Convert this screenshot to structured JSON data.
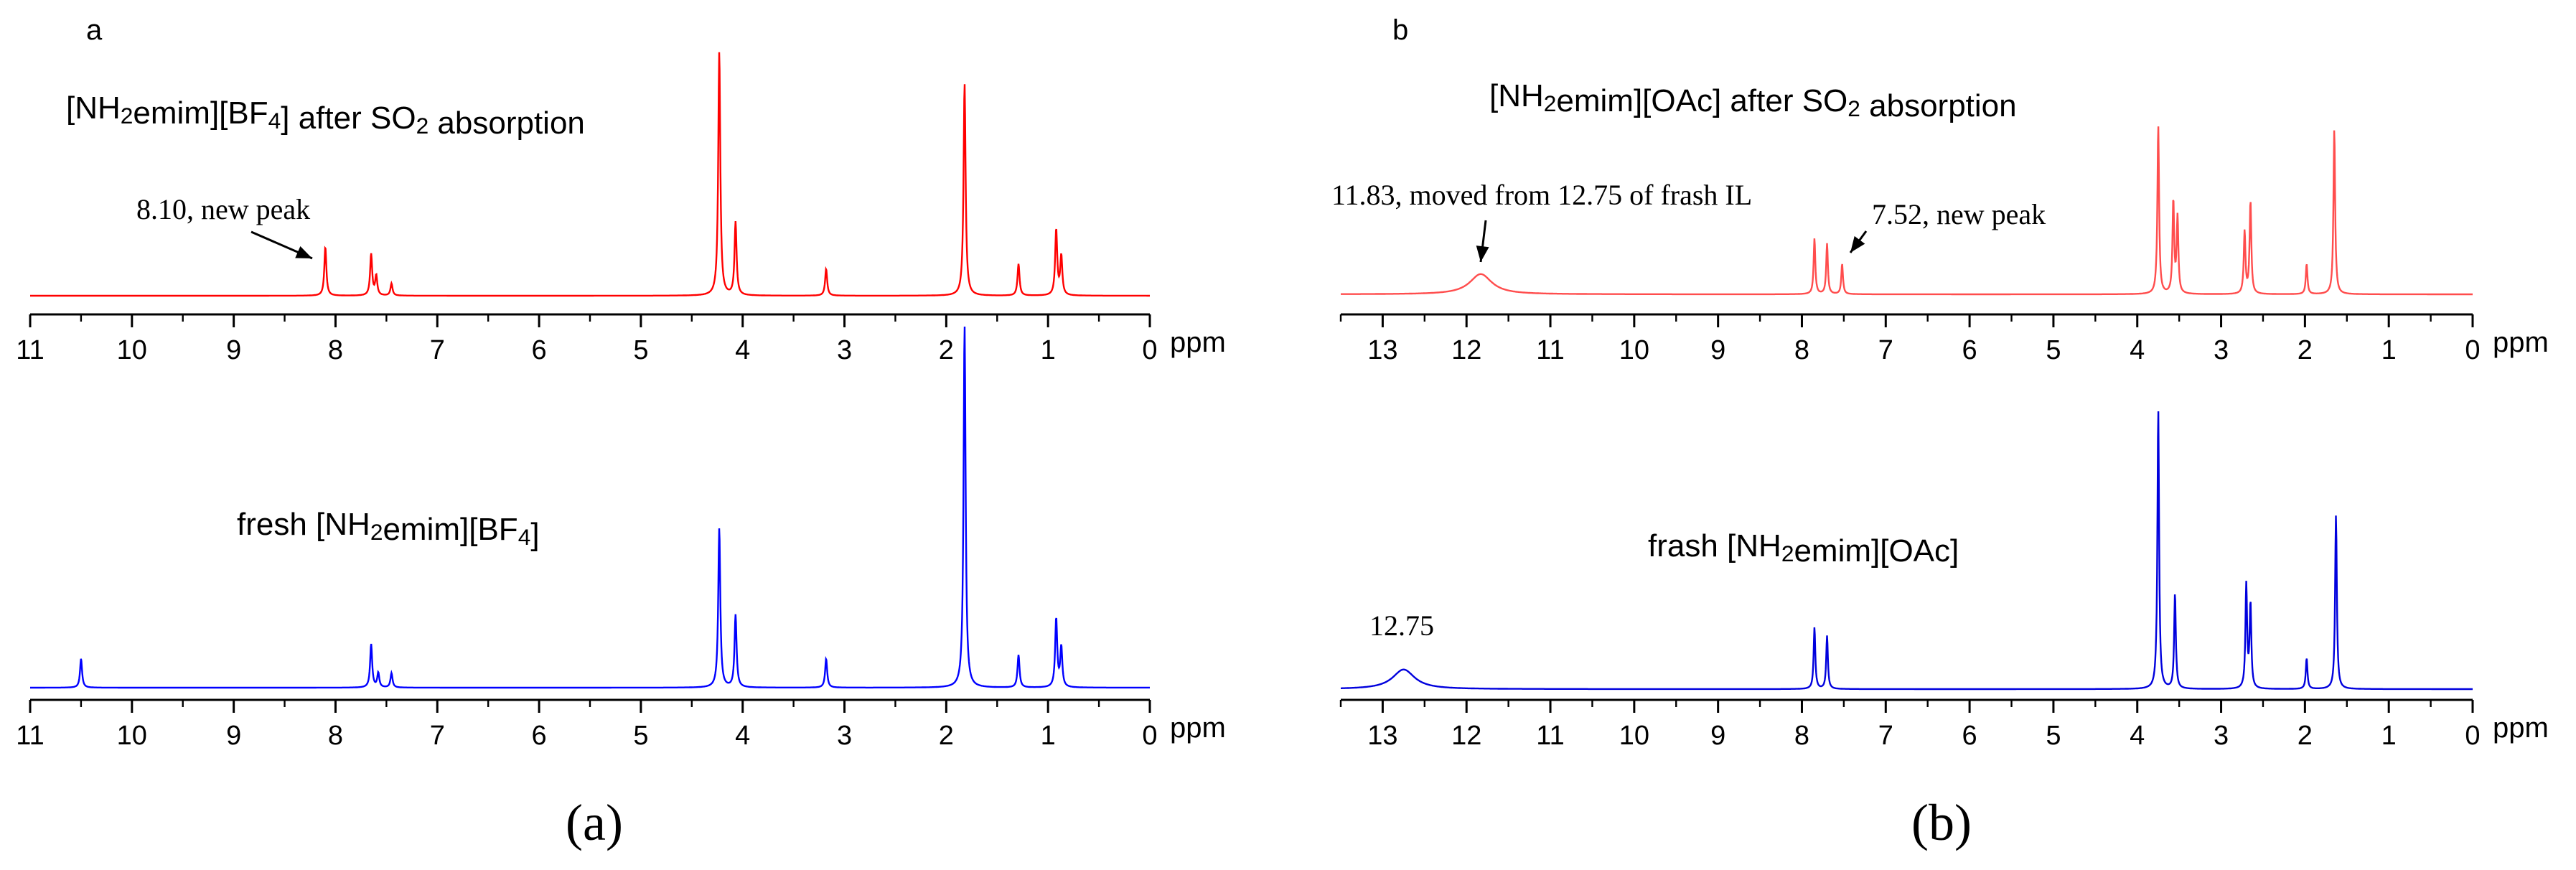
{
  "figure": {
    "caption_a": "(a)",
    "caption_b": "(b)"
  },
  "chart_data": [
    {
      "type": "line",
      "panel_label": "a",
      "title": "[NH2emim][BF4] after SO2 absorption",
      "xlabel": "ppm",
      "xlim": [
        11,
        0
      ],
      "xticks": [
        "11",
        "10",
        "9",
        "8",
        "7",
        "6",
        "5",
        "4",
        "3",
        "2",
        "1",
        "0"
      ],
      "color": "#ff0000",
      "peaks": [
        {
          "x": 8.1,
          "h": 0.2
        },
        {
          "x": 7.65,
          "h": 0.17
        },
        {
          "x": 7.6,
          "h": 0.08
        },
        {
          "x": 7.45,
          "h": 0.05
        },
        {
          "x": 4.23,
          "h": 1.0
        },
        {
          "x": 4.07,
          "h": 0.3
        },
        {
          "x": 3.18,
          "h": 0.11
        },
        {
          "x": 1.82,
          "h": 0.87
        },
        {
          "x": 1.29,
          "h": 0.13
        },
        {
          "x": 0.92,
          "h": 0.27
        },
        {
          "x": 0.87,
          "h": 0.16
        }
      ],
      "annotations": [
        {
          "text": "8.10, new peak",
          "x": 8.1
        }
      ]
    },
    {
      "type": "line",
      "panel_label": "",
      "title": "fresh [NH2emim][BF4]",
      "xlabel": "ppm",
      "xlim": [
        11,
        0
      ],
      "xticks": [
        "11",
        "10",
        "9",
        "8",
        "7",
        "6",
        "5",
        "4",
        "3",
        "2",
        "1",
        "0"
      ],
      "color": "#0000ff",
      "peaks": [
        {
          "x": 10.5,
          "h": 0.08
        },
        {
          "x": 7.65,
          "h": 0.12
        },
        {
          "x": 7.58,
          "h": 0.04
        },
        {
          "x": 7.45,
          "h": 0.04
        },
        {
          "x": 4.23,
          "h": 0.44
        },
        {
          "x": 4.07,
          "h": 0.2
        },
        {
          "x": 3.18,
          "h": 0.08
        },
        {
          "x": 1.82,
          "h": 1.0
        },
        {
          "x": 1.29,
          "h": 0.09
        },
        {
          "x": 0.92,
          "h": 0.19
        },
        {
          "x": 0.87,
          "h": 0.11
        }
      ],
      "annotations": []
    },
    {
      "type": "line",
      "panel_label": "b",
      "title": "[NH2emim][OAc] after SO2 absorption",
      "xlabel": "ppm",
      "xlim": [
        13.5,
        0
      ],
      "xticks": [
        "13",
        "12",
        "11",
        "10",
        "9",
        "8",
        "7",
        "6",
        "5",
        "4",
        "3",
        "2",
        "1",
        "0"
      ],
      "color": "#ff4d4d",
      "peaks": [
        {
          "x": 11.83,
          "h": 0.12,
          "broad": true
        },
        {
          "x": 7.85,
          "h": 0.33
        },
        {
          "x": 7.7,
          "h": 0.3
        },
        {
          "x": 7.52,
          "h": 0.18
        },
        {
          "x": 3.75,
          "h": 1.0
        },
        {
          "x": 3.57,
          "h": 0.55
        },
        {
          "x": 3.52,
          "h": 0.45
        },
        {
          "x": 2.72,
          "h": 0.37
        },
        {
          "x": 2.65,
          "h": 0.55
        },
        {
          "x": 1.98,
          "h": 0.18
        },
        {
          "x": 1.65,
          "h": 0.98
        }
      ],
      "annotations": [
        {
          "text": "11.83, moved from 12.75 of frash IL",
          "x": 11.83
        },
        {
          "text": "7.52, new peak",
          "x": 7.52
        }
      ]
    },
    {
      "type": "line",
      "panel_label": "",
      "title": "frash [NH2emim][OAc]",
      "xlabel": "ppm",
      "xlim": [
        13.5,
        0
      ],
      "xticks": [
        "13",
        "12",
        "11",
        "10",
        "9",
        "8",
        "7",
        "6",
        "5",
        "4",
        "3",
        "2",
        "1",
        "0"
      ],
      "color": "#0000dd",
      "peaks": [
        {
          "x": 12.75,
          "h": 0.07,
          "broad": true
        },
        {
          "x": 7.85,
          "h": 0.22
        },
        {
          "x": 7.7,
          "h": 0.19
        },
        {
          "x": 3.75,
          "h": 1.0
        },
        {
          "x": 3.55,
          "h": 0.34
        },
        {
          "x": 2.7,
          "h": 0.37
        },
        {
          "x": 2.65,
          "h": 0.3
        },
        {
          "x": 1.98,
          "h": 0.11
        },
        {
          "x": 1.63,
          "h": 0.62
        }
      ],
      "annotations": [
        {
          "text": "12.75",
          "x": 12.75
        }
      ]
    }
  ]
}
